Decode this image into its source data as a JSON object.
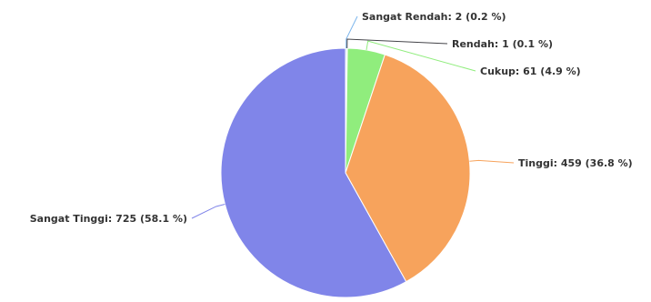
{
  "chart_data": {
    "type": "pie",
    "title": "",
    "slices": [
      {
        "name": "Sangat Rendah",
        "value": 2,
        "percent": 0.2,
        "label": "Sangat Rendah: 2 (0.2 %)",
        "color": "#7cb5ec"
      },
      {
        "name": "Rendah",
        "value": 1,
        "percent": 0.1,
        "label": "Rendah: 1 (0.1 %)",
        "color": "#434348"
      },
      {
        "name": "Cukup",
        "value": 61,
        "percent": 4.9,
        "label": "Cukup: 61 (4.9 %)",
        "color": "#90ed7d"
      },
      {
        "name": "Tinggi",
        "value": 459,
        "percent": 36.8,
        "label": "Tinggi: 459 (36.8 %)",
        "color": "#f7a35c"
      },
      {
        "name": "Sangat Tinggi",
        "value": 725,
        "percent": 58.1,
        "label": "Sangat Tinggi: 725 (58.1 %)",
        "color": "#8085e9"
      }
    ]
  }
}
